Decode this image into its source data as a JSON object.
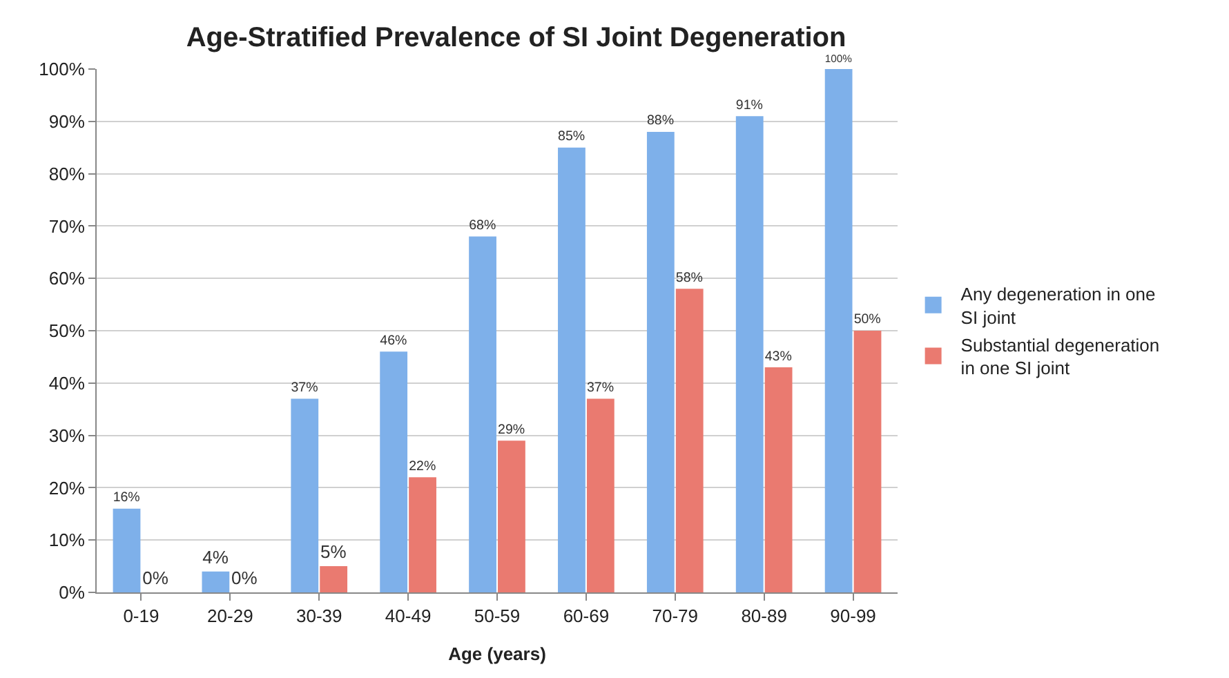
{
  "chart_data": {
    "type": "bar",
    "title": "Age-Stratified Prevalence of SI Joint Degeneration",
    "xlabel": "Age (years)",
    "categories": [
      "0-19",
      "20-29",
      "30-39",
      "40-49",
      "50-59",
      "60-69",
      "70-79",
      "80-89",
      "90-99"
    ],
    "series": [
      {
        "name": "Any degeneration in one SI joint",
        "color": "#7eb0ea",
        "values": [
          16,
          4,
          37,
          46,
          68,
          85,
          88,
          91,
          100
        ],
        "value_labels": [
          "16%",
          "4%",
          "37%",
          "46%",
          "68%",
          "85%",
          "88%",
          "91%",
          "100%"
        ]
      },
      {
        "name": "Substantial degeneration in one SI joint",
        "color": "#ea7a70",
        "values": [
          0,
          0,
          5,
          22,
          29,
          37,
          58,
          43,
          50
        ],
        "value_labels": [
          "0%",
          "0%",
          "5%",
          "22%",
          "29%",
          "37%",
          "58%",
          "43%",
          "50%"
        ]
      }
    ],
    "ylim": [
      0,
      100
    ],
    "yticks": [
      {
        "value": 0,
        "label": "0%"
      },
      {
        "value": 10,
        "label": "10%"
      },
      {
        "value": 20,
        "label": "20%"
      },
      {
        "value": 30,
        "label": "30%"
      },
      {
        "value": 40,
        "label": "40%"
      },
      {
        "value": 50,
        "label": "50%"
      },
      {
        "value": 60,
        "label": "60%"
      },
      {
        "value": 70,
        "label": "70%"
      },
      {
        "value": 80,
        "label": "80%"
      },
      {
        "value": 90,
        "label": "90%"
      },
      {
        "value": 100,
        "label": "100%"
      }
    ],
    "grid": "y",
    "legend": "right"
  }
}
